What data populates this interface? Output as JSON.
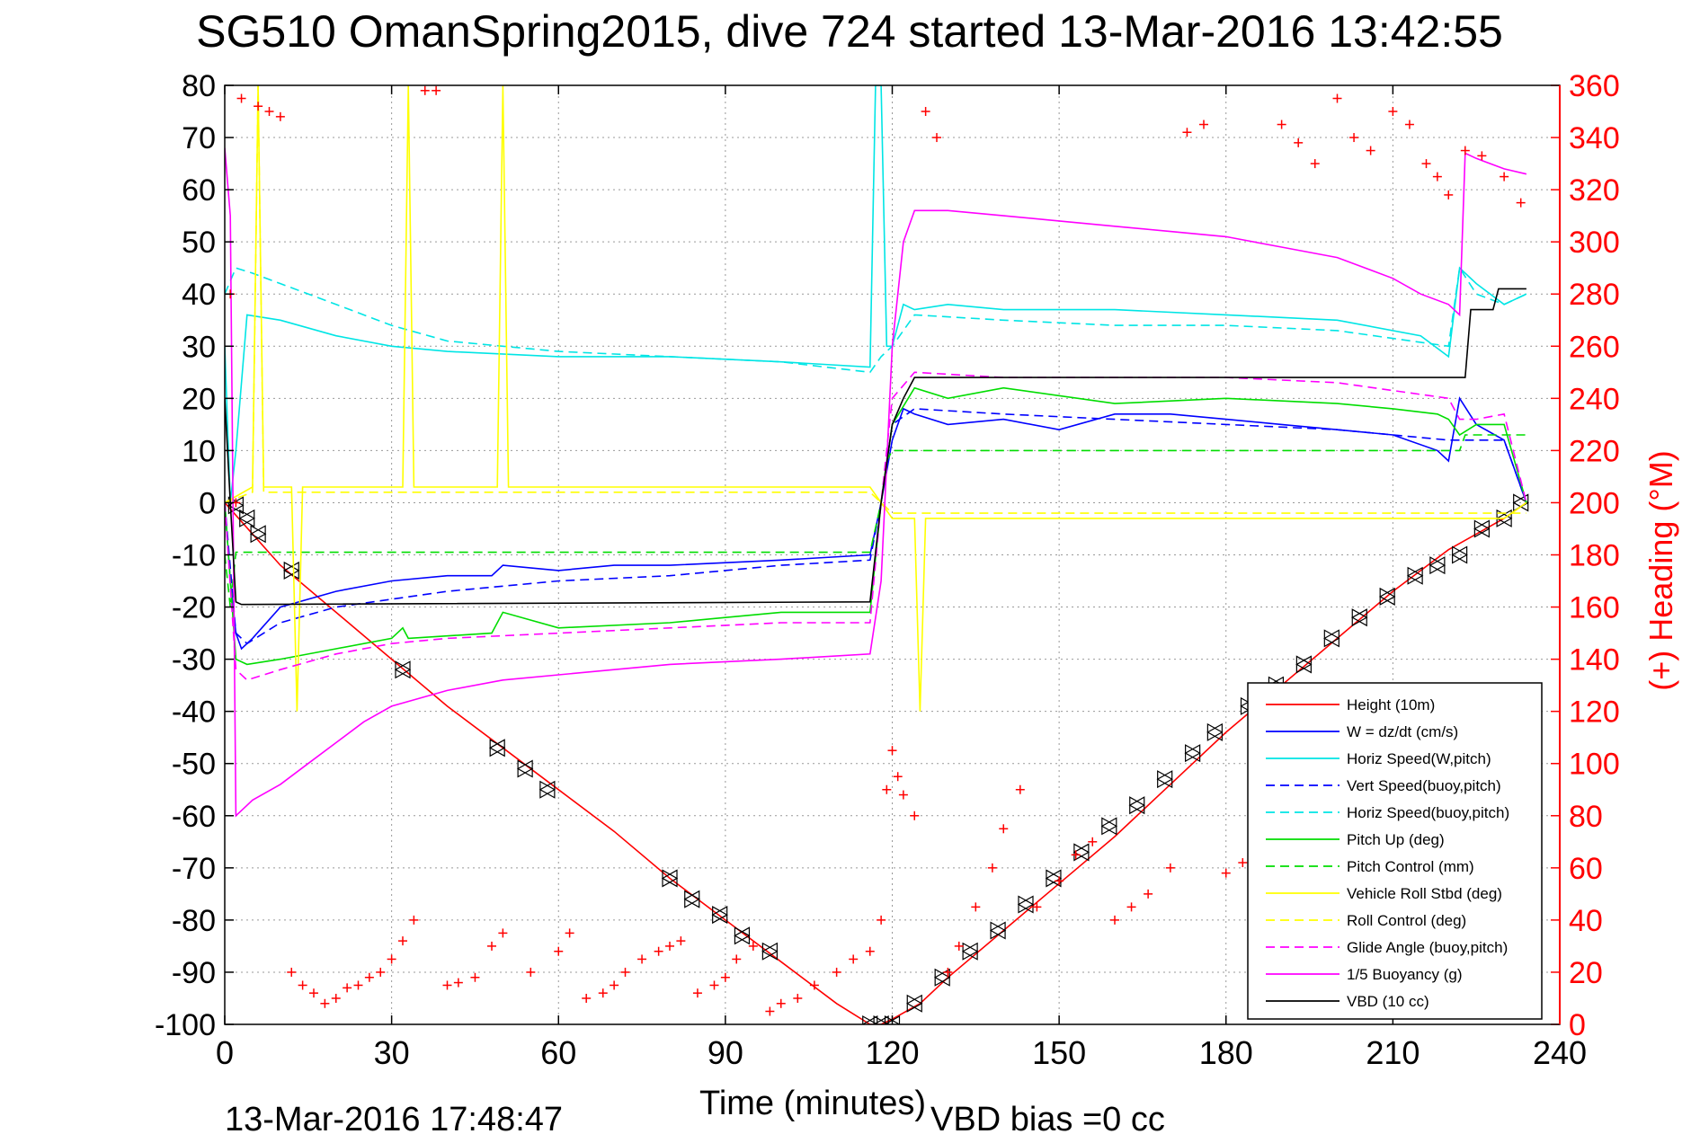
{
  "chart_data": {
    "type": "line",
    "title": "SG510 OmanSpring2015, dive 724 started 13-Mar-2016 13:42:55",
    "xlabel": "Time (minutes)",
    "ylabel": "",
    "y2label": "(+) Heading (°M)",
    "xlim": [
      0,
      240
    ],
    "ylim": [
      -100,
      80
    ],
    "y2lim": [
      0,
      360
    ],
    "grid": true,
    "legend_position": "bottom-right",
    "xticks": [
      "0",
      "30",
      "60",
      "90",
      "120",
      "150",
      "180",
      "210",
      "240"
    ],
    "yticks": [
      "80",
      "70",
      "60",
      "50",
      "40",
      "30",
      "20",
      "10",
      "0",
      "-10",
      "-20",
      "-30",
      "-40",
      "-50",
      "-60",
      "-70",
      "-80",
      "-90",
      "-100"
    ],
    "y2ticks": [
      "360",
      "340",
      "320",
      "300",
      "280",
      "260",
      "240",
      "220",
      "200",
      "180",
      "160",
      "140",
      "120",
      "100",
      "80",
      "60",
      "40",
      "20",
      "0"
    ],
    "footer_left": "13-Mar-2016 17:48:47",
    "footer_right": "VBD bias =0 cc",
    "colors": {
      "height": "#ff0000",
      "w": "#0000ff",
      "horiz": "#00e5e5",
      "pitch": "#00dd00",
      "roll": "#ffff00",
      "glide": "#ff00ff",
      "buoy": "#ff00ff",
      "vbd": "#000000",
      "heading": "#ff0000"
    },
    "series": [
      {
        "name": "Height (10m)",
        "style": "solid",
        "color": "#ff0000",
        "x": [
          0,
          5,
          10,
          20,
          30,
          40,
          50,
          60,
          70,
          80,
          90,
          100,
          110,
          116,
          118,
          120,
          125,
          130,
          140,
          150,
          160,
          170,
          180,
          190,
          200,
          210,
          220,
          225,
          230,
          234
        ],
        "y": [
          0,
          -6,
          -12,
          -21,
          -30,
          -39,
          -47,
          -55,
          -63,
          -72,
          -80,
          -88,
          -96,
          -100,
          -100,
          -99,
          -96,
          -91,
          -82,
          -73,
          -64,
          -54,
          -44,
          -35,
          -26,
          -17,
          -9,
          -6,
          -3,
          0
        ],
        "markers": [
          [
            2,
            -0.5
          ],
          [
            4,
            -3
          ],
          [
            6,
            -6
          ],
          [
            12,
            -13
          ],
          [
            32,
            -32
          ],
          [
            49,
            -47
          ],
          [
            54,
            -51
          ],
          [
            58,
            -55
          ],
          [
            80,
            -72
          ],
          [
            84,
            -76
          ],
          [
            89,
            -79
          ],
          [
            93,
            -83
          ],
          [
            98,
            -86
          ],
          [
            116,
            -100
          ],
          [
            118,
            -100
          ],
          [
            120,
            -100
          ],
          [
            124,
            -96
          ],
          [
            129,
            -91
          ],
          [
            134,
            -86
          ],
          [
            139,
            -82
          ],
          [
            144,
            -77
          ],
          [
            149,
            -72
          ],
          [
            154,
            -67
          ],
          [
            159,
            -62
          ],
          [
            164,
            -58
          ],
          [
            169,
            -53
          ],
          [
            174,
            -48
          ],
          [
            178,
            -44
          ],
          [
            184,
            -39
          ],
          [
            189,
            -35
          ],
          [
            194,
            -31
          ],
          [
            199,
            -26
          ],
          [
            204,
            -22
          ],
          [
            209,
            -18
          ],
          [
            214,
            -14
          ],
          [
            218,
            -12
          ],
          [
            222,
            -10
          ],
          [
            226,
            -5
          ],
          [
            230,
            -3
          ],
          [
            233,
            0
          ]
        ]
      },
      {
        "name": "W = dz/dt (cm/s)",
        "style": "solid",
        "color": "#0000ff",
        "x": [
          0,
          1,
          2,
          3,
          5,
          10,
          20,
          30,
          40,
          48,
          50,
          60,
          70,
          80,
          100,
          116,
          118,
          120,
          122,
          124,
          130,
          140,
          150,
          160,
          170,
          180,
          190,
          200,
          210,
          218,
          220,
          222,
          225,
          230,
          234
        ],
        "y": [
          0,
          -15,
          -25,
          -28,
          -26,
          -20,
          -17,
          -15,
          -14,
          -14,
          -12,
          -13,
          -12,
          -12,
          -11,
          -10,
          0,
          12,
          18,
          17,
          15,
          16,
          14,
          17,
          17,
          16,
          15,
          14,
          13,
          10,
          8,
          20,
          15,
          12,
          0
        ]
      },
      {
        "name": "Horiz Speed(W,pitch)",
        "style": "solid",
        "color": "#00e5e5",
        "x": [
          0,
          1,
          2,
          4,
          10,
          20,
          30,
          40,
          60,
          80,
          100,
          116,
          117,
          118,
          119,
          120,
          122,
          124,
          130,
          140,
          160,
          180,
          200,
          215,
          220,
          222,
          225,
          230,
          234
        ],
        "y": [
          30,
          0,
          10,
          36,
          35,
          32,
          30,
          29,
          28,
          28,
          27,
          26,
          80,
          80,
          30,
          30,
          38,
          37,
          38,
          37,
          37,
          36,
          35,
          32,
          28,
          45,
          42,
          38,
          40
        ]
      },
      {
        "name": "Vert Speed(buoy,pitch)",
        "style": "dashed",
        "color": "#0000ff",
        "x": [
          0,
          2,
          4,
          10,
          20,
          40,
          60,
          80,
          100,
          116,
          118,
          120,
          124,
          140,
          160,
          180,
          200,
          220,
          230,
          234
        ],
        "y": [
          0,
          -25,
          -27,
          -23,
          -20,
          -17,
          -15,
          -14,
          -12,
          -11,
          0,
          15,
          18,
          17,
          16,
          15,
          14,
          12,
          12,
          0
        ]
      },
      {
        "name": "Horiz Speed(buoy,pitch)",
        "style": "dashed",
        "color": "#00e5e5",
        "x": [
          0,
          2,
          5,
          10,
          20,
          30,
          40,
          50,
          60,
          80,
          100,
          116,
          118,
          120,
          124,
          140,
          160,
          180,
          200,
          220,
          222,
          225,
          230,
          234
        ],
        "y": [
          40,
          45,
          44,
          42,
          38,
          34,
          31,
          30,
          29,
          28,
          27,
          25,
          28,
          30,
          36,
          35,
          34,
          34,
          33,
          30,
          45,
          40,
          38,
          40
        ]
      },
      {
        "name": "Pitch Up (deg)",
        "style": "solid",
        "color": "#00dd00",
        "x": [
          0,
          2,
          4,
          10,
          20,
          30,
          32,
          33,
          48,
          50,
          60,
          80,
          90,
          100,
          116,
          118,
          120,
          124,
          130,
          140,
          160,
          180,
          200,
          210,
          218,
          220,
          222,
          225,
          230,
          234
        ],
        "y": [
          0,
          -30,
          -31,
          -30,
          -28,
          -26,
          -24,
          -26,
          -25,
          -21,
          -24,
          -23,
          -22,
          -21,
          -21,
          0,
          15,
          22,
          20,
          22,
          19,
          20,
          19,
          18,
          17,
          16,
          13,
          15,
          15,
          0
        ]
      },
      {
        "name": "Pitch Control (mm)",
        "style": "dashed",
        "color": "#00dd00",
        "x": [
          0,
          1,
          2,
          116,
          118,
          119,
          120,
          222,
          223,
          234
        ],
        "y": [
          -10,
          -20,
          -9.5,
          -9.5,
          0,
          8,
          10,
          10,
          13,
          13
        ]
      },
      {
        "name": "Vehicle Roll Stbd (deg)",
        "style": "solid",
        "color": "#ffff00",
        "x": [
          0,
          5,
          6,
          7,
          12,
          13,
          14,
          32,
          33,
          34,
          49,
          50,
          51,
          116,
          118,
          120,
          124,
          125,
          126,
          150,
          200,
          230,
          234
        ],
        "y": [
          0,
          3,
          80,
          3,
          3,
          -40,
          3,
          3,
          80,
          3,
          3,
          80,
          3,
          3,
          0,
          -3,
          -3,
          -40,
          -3,
          -3,
          -3,
          -3,
          0
        ]
      },
      {
        "name": "Roll Control (deg)",
        "style": "dashed",
        "color": "#ffff00",
        "x": [
          0,
          5,
          6,
          7,
          116,
          118,
          120,
          234
        ],
        "y": [
          0,
          2,
          80,
          2,
          2,
          0,
          -2,
          -2
        ]
      },
      {
        "name": "Glide Angle (buoy,pitch)",
        "style": "dashed",
        "color": "#ff00ff",
        "x": [
          0,
          2,
          4,
          10,
          20,
          30,
          40,
          60,
          80,
          100,
          116,
          118,
          120,
          124,
          140,
          160,
          180,
          200,
          220,
          222,
          225,
          230,
          234
        ],
        "y": [
          0,
          -32,
          -34,
          -32,
          -29,
          -27,
          -26,
          -25,
          -24,
          -23,
          -23,
          0,
          20,
          25,
          24,
          24,
          24,
          23,
          20,
          16,
          16,
          17,
          0
        ]
      },
      {
        "name": "1/5 Buoyancy (g)",
        "style": "solid",
        "color": "#ff00ff",
        "x": [
          0,
          1,
          2,
          4,
          5,
          10,
          15,
          20,
          25,
          30,
          40,
          50,
          60,
          80,
          100,
          116,
          118,
          120,
          122,
          124,
          130,
          140,
          150,
          160,
          170,
          180,
          190,
          200,
          210,
          215,
          220,
          222,
          223,
          225,
          230,
          234
        ],
        "y": [
          68,
          55,
          -60,
          -58,
          -57,
          -54,
          -50,
          -46,
          -42,
          -39,
          -36,
          -34,
          -33,
          -31,
          -30,
          -29,
          -15,
          30,
          50,
          56,
          56,
          55,
          54,
          53,
          52,
          51,
          49,
          47,
          43,
          40,
          38,
          36,
          67,
          66,
          64,
          63
        ]
      },
      {
        "name": "VBD (10 cc)",
        "style": "solid",
        "color": "#000000",
        "x": [
          0,
          1,
          2,
          3,
          116,
          118,
          120,
          122,
          124,
          140,
          160,
          180,
          200,
          210,
          220,
          222,
          223,
          224,
          225,
          228,
          229,
          230,
          234
        ],
        "y": [
          20,
          0,
          -19,
          -19.5,
          -19,
          0,
          15,
          20,
          24,
          24,
          24,
          24,
          24,
          24,
          24,
          24,
          24,
          37,
          37,
          37,
          41,
          41,
          41
        ]
      }
    ],
    "heading": {
      "name": "(+) Heading",
      "color": "#ff0000",
      "x": [
        1,
        2,
        3,
        6,
        8,
        10,
        12,
        14,
        16,
        18,
        20,
        22,
        24,
        26,
        28,
        30,
        32,
        34,
        36,
        38,
        40,
        42,
        45,
        48,
        50,
        55,
        60,
        62,
        65,
        68,
        70,
        72,
        75,
        78,
        80,
        82,
        85,
        88,
        90,
        92,
        95,
        98,
        100,
        103,
        106,
        110,
        113,
        116,
        118,
        119,
        120,
        121,
        122,
        124,
        126,
        128,
        130,
        132,
        135,
        138,
        140,
        143,
        146,
        150,
        153,
        156,
        160,
        163,
        166,
        170,
        173,
        176,
        180,
        183,
        186,
        190,
        193,
        196,
        200,
        203,
        206,
        210,
        213,
        216,
        218,
        220,
        223,
        226,
        230,
        233
      ],
      "y": [
        280,
        200,
        355,
        352,
        350,
        348,
        20,
        15,
        12,
        8,
        10,
        14,
        15,
        18,
        20,
        25,
        32,
        40,
        358,
        358,
        15,
        16,
        18,
        30,
        35,
        20,
        28,
        35,
        10,
        12,
        15,
        20,
        25,
        28,
        30,
        32,
        12,
        15,
        18,
        25,
        30,
        5,
        8,
        10,
        15,
        20,
        25,
        28,
        40,
        90,
        105,
        95,
        88,
        80,
        350,
        340,
        20,
        30,
        45,
        60,
        75,
        90,
        45,
        55,
        65,
        70,
        40,
        45,
        50,
        60,
        342,
        345,
        58,
        62,
        68,
        345,
        338,
        330,
        355,
        340,
        335,
        350,
        345,
        330,
        325,
        318,
        335,
        333,
        325,
        315
      ]
    }
  }
}
